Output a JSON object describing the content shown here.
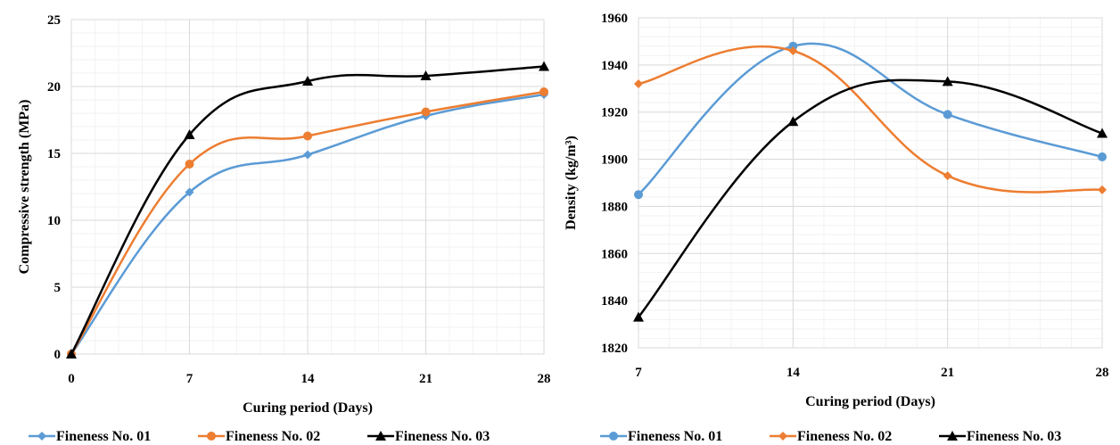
{
  "chart_data": [
    {
      "type": "line",
      "xlabel": "Curing period (Days)",
      "ylabel": "Compressive strength (MPa)",
      "x": [
        0,
        7,
        14,
        21,
        28
      ],
      "xticks": [
        0,
        7,
        14,
        21,
        28
      ],
      "xlim": [
        0,
        28
      ],
      "ylim": [
        0,
        25
      ],
      "yticks": [
        0,
        5,
        10,
        15,
        20,
        25
      ],
      "grid": true,
      "smooth": true,
      "legend_position": "bottom",
      "series": [
        {
          "name": "Fineness No. 01",
          "color": "#5b9bd5",
          "marker": "diamond",
          "values": [
            0,
            12.1,
            14.9,
            17.8,
            19.4
          ]
        },
        {
          "name": "Fineness No. 02",
          "color": "#ed7d31",
          "marker": "circle",
          "values": [
            0,
            14.2,
            16.3,
            18.1,
            19.6
          ]
        },
        {
          "name": "Fineness No. 03",
          "color": "#000000",
          "marker": "triangle",
          "values": [
            0,
            16.4,
            20.4,
            20.8,
            21.5
          ]
        }
      ]
    },
    {
      "type": "line",
      "xlabel": "Curing period (Days)",
      "ylabel": "Density (kg/m³)",
      "x": [
        7,
        14,
        21,
        28
      ],
      "xticks": [
        7,
        14,
        21,
        28
      ],
      "xlim": [
        7,
        28
      ],
      "ylim": [
        1820,
        1960
      ],
      "yticks": [
        1820,
        1840,
        1860,
        1880,
        1900,
        1920,
        1940,
        1960
      ],
      "grid": true,
      "smooth": true,
      "legend_position": "bottom",
      "series": [
        {
          "name": "Fineness No. 01",
          "color": "#5b9bd5",
          "marker": "circle",
          "values": [
            1885,
            1948,
            1919,
            1901
          ]
        },
        {
          "name": "Fineness No. 02",
          "color": "#ed7d31",
          "marker": "diamond",
          "values": [
            1932,
            1946,
            1893,
            1887
          ]
        },
        {
          "name": "Fineness No. 03",
          "color": "#000000",
          "marker": "triangle",
          "values": [
            1833,
            1916,
            1933,
            1911
          ]
        }
      ]
    }
  ]
}
